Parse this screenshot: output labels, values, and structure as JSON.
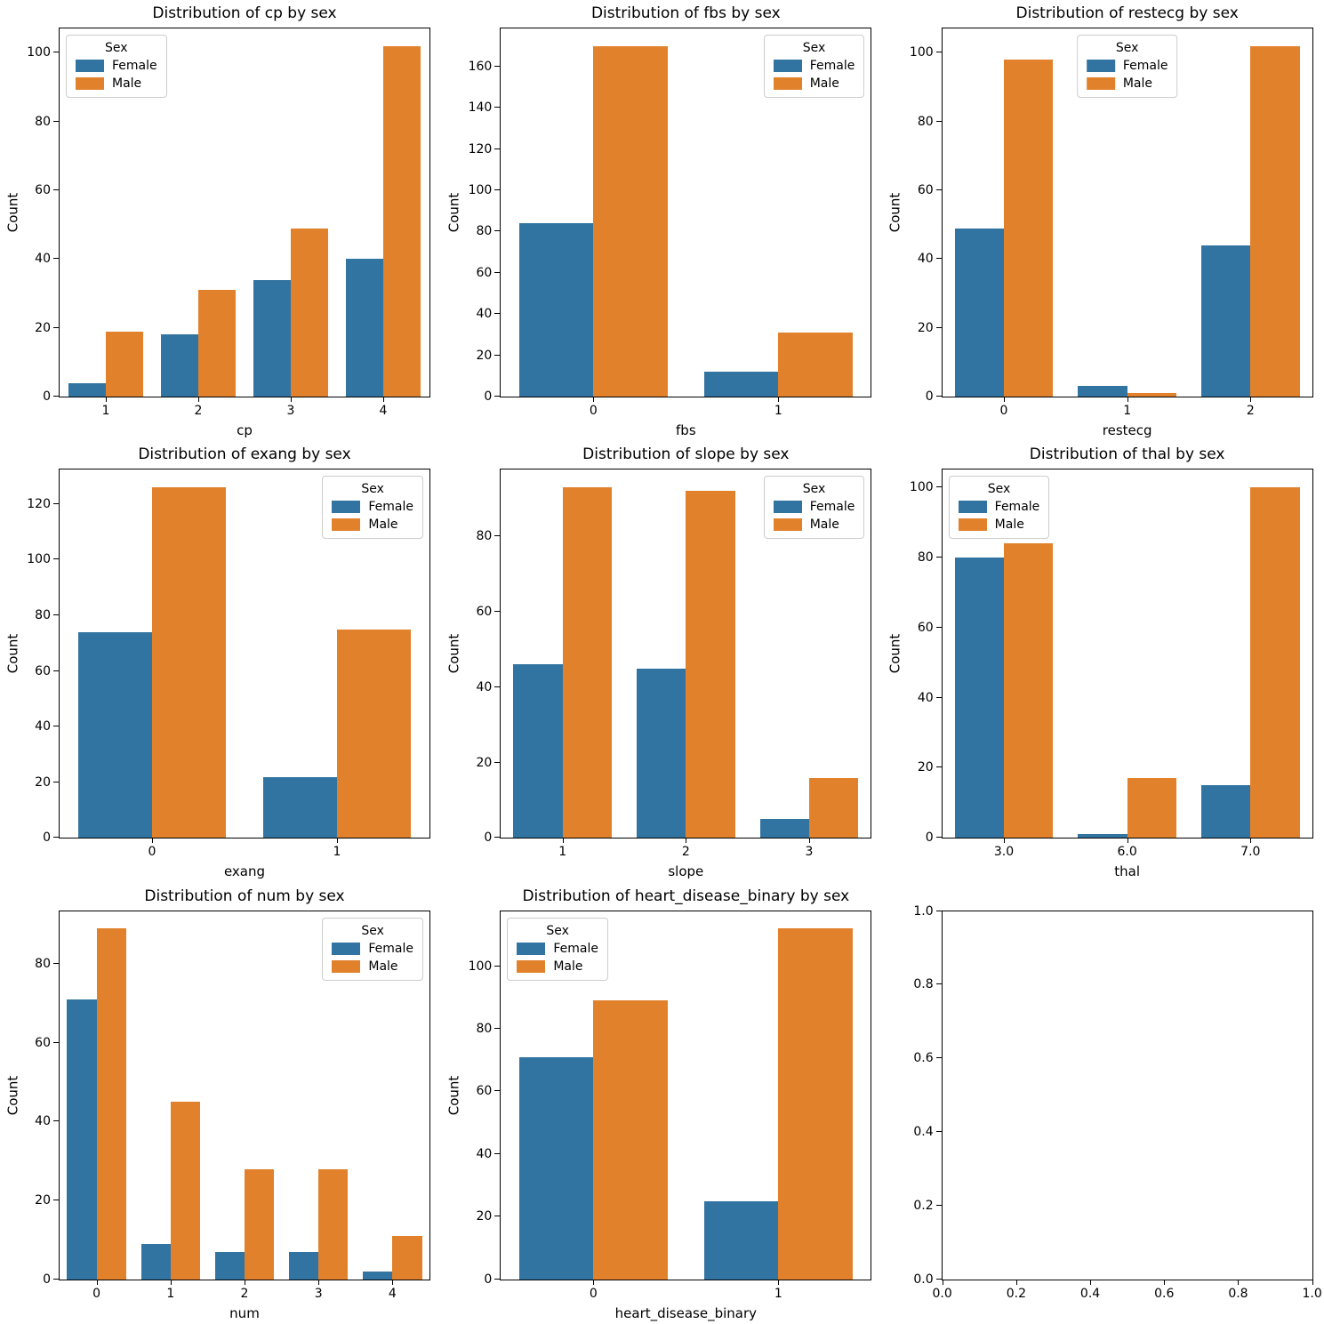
{
  "figure_background": "#ffffff",
  "colors": {
    "female": "#3274A1",
    "male": "#E1812C"
  },
  "legend": {
    "title": "Sex",
    "entries": [
      {
        "label": "Female",
        "color": "#3274A1"
      },
      {
        "label": "Male",
        "color": "#E1812C"
      }
    ]
  },
  "chart_data": [
    {
      "type": "bar",
      "title": "Distribution of cp by sex",
      "xlabel": "cp",
      "ylabel": "Count",
      "categories": [
        "1",
        "2",
        "3",
        "4"
      ],
      "series": [
        {
          "name": "Female",
          "values": [
            4,
            18,
            34,
            40
          ]
        },
        {
          "name": "Male",
          "values": [
            19,
            31,
            49,
            102
          ]
        }
      ],
      "yticks": [
        0,
        20,
        40,
        60,
        80,
        100
      ],
      "ylim": [
        0,
        107.1
      ],
      "grid": false,
      "legend_position": "upper-left"
    },
    {
      "type": "bar",
      "title": "Distribution of fbs by sex",
      "xlabel": "fbs",
      "ylabel": "Count",
      "categories": [
        "0",
        "1"
      ],
      "series": [
        {
          "name": "Female",
          "values": [
            84,
            12
          ]
        },
        {
          "name": "Male",
          "values": [
            170,
            31
          ]
        }
      ],
      "yticks": [
        0,
        20,
        40,
        60,
        80,
        100,
        120,
        140,
        160
      ],
      "ylim": [
        0,
        178.5
      ],
      "grid": false,
      "legend_position": "upper-right"
    },
    {
      "type": "bar",
      "title": "Distribution of restecg by sex",
      "xlabel": "restecg",
      "ylabel": "Count",
      "categories": [
        "0",
        "1",
        "2"
      ],
      "series": [
        {
          "name": "Female",
          "values": [
            49,
            3,
            44
          ]
        },
        {
          "name": "Male",
          "values": [
            98,
            1,
            102
          ]
        }
      ],
      "yticks": [
        0,
        20,
        40,
        60,
        80,
        100
      ],
      "ylim": [
        0,
        107.1
      ],
      "grid": false,
      "legend_position": "upper-center"
    },
    {
      "type": "bar",
      "title": "Distribution of exang by sex",
      "xlabel": "exang",
      "ylabel": "Count",
      "categories": [
        "0",
        "1"
      ],
      "series": [
        {
          "name": "Female",
          "values": [
            74,
            22
          ]
        },
        {
          "name": "Male",
          "values": [
            126,
            75
          ]
        }
      ],
      "yticks": [
        0,
        20,
        40,
        60,
        80,
        100,
        120
      ],
      "ylim": [
        0,
        132.3
      ],
      "grid": false,
      "legend_position": "upper-right"
    },
    {
      "type": "bar",
      "title": "Distribution of slope by sex",
      "xlabel": "slope",
      "ylabel": "Count",
      "categories": [
        "1",
        "2",
        "3"
      ],
      "series": [
        {
          "name": "Female",
          "values": [
            46,
            45,
            5
          ]
        },
        {
          "name": "Male",
          "values": [
            93,
            92,
            16
          ]
        }
      ],
      "yticks": [
        0,
        20,
        40,
        60,
        80
      ],
      "ylim": [
        0,
        97.65
      ],
      "grid": false,
      "legend_position": "upper-right"
    },
    {
      "type": "bar",
      "title": "Distribution of thal by sex",
      "xlabel": "thal",
      "ylabel": "Count",
      "categories": [
        "3.0",
        "6.0",
        "7.0"
      ],
      "series": [
        {
          "name": "Female",
          "values": [
            80,
            1,
            15
          ]
        },
        {
          "name": "Male",
          "values": [
            84,
            17,
            100
          ]
        }
      ],
      "yticks": [
        0,
        20,
        40,
        60,
        80,
        100
      ],
      "ylim": [
        0,
        105
      ],
      "grid": false,
      "legend_position": "upper-left"
    },
    {
      "type": "bar",
      "title": "Distribution of num by sex",
      "xlabel": "num",
      "ylabel": "Count",
      "categories": [
        "0",
        "1",
        "2",
        "3",
        "4"
      ],
      "series": [
        {
          "name": "Female",
          "values": [
            71,
            9,
            7,
            7,
            2
          ]
        },
        {
          "name": "Male",
          "values": [
            89,
            45,
            28,
            28,
            11
          ]
        }
      ],
      "yticks": [
        0,
        20,
        40,
        60,
        80
      ],
      "ylim": [
        0,
        93.45
      ],
      "grid": false,
      "legend_position": "upper-right"
    },
    {
      "type": "bar",
      "title": "Distribution of heart_disease_binary by sex",
      "xlabel": "heart_disease_binary",
      "ylabel": "Count",
      "categories": [
        "0",
        "1"
      ],
      "series": [
        {
          "name": "Female",
          "values": [
            71,
            25
          ]
        },
        {
          "name": "Male",
          "values": [
            89,
            112
          ]
        }
      ],
      "yticks": [
        0,
        20,
        40,
        60,
        80,
        100
      ],
      "ylim": [
        0,
        117.6
      ],
      "grid": false,
      "legend_position": "upper-left"
    },
    {
      "type": "empty",
      "xticks": [
        "0.0",
        "0.2",
        "0.4",
        "0.6",
        "0.8",
        "1.0"
      ],
      "yticks": [
        "0.0",
        "0.2",
        "0.4",
        "0.6",
        "0.8",
        "1.0"
      ],
      "xlim": [
        0,
        1
      ],
      "ylim": [
        0,
        1
      ]
    }
  ]
}
